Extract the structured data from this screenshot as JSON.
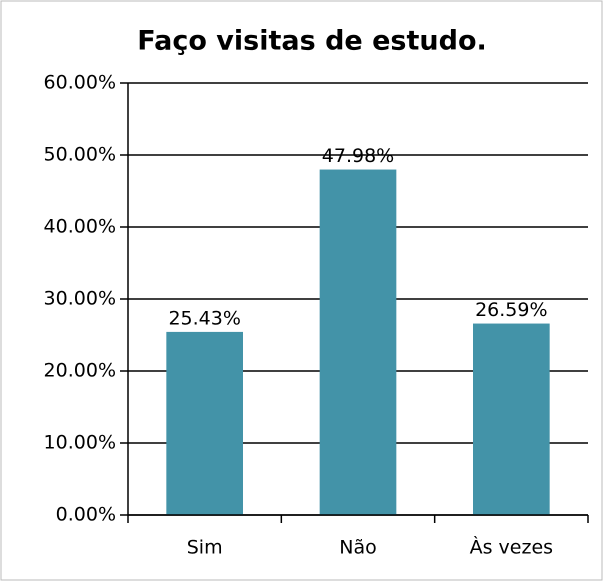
{
  "chart_data": {
    "type": "bar",
    "title": "Faço visitas de estudo.",
    "categories": [
      "Sim",
      "Não",
      "Às vezes"
    ],
    "values": [
      25.43,
      47.98,
      26.59
    ],
    "value_labels": [
      "25.43%",
      "47.98%",
      "26.59%"
    ],
    "color": "#4393a8",
    "ylim": [
      0,
      60
    ],
    "yticks": [
      {
        "value": 0,
        "label": "0.00%"
      },
      {
        "value": 10,
        "label": "10.00%"
      },
      {
        "value": 20,
        "label": "20.00%"
      },
      {
        "value": 30,
        "label": "30.00%"
      },
      {
        "value": 40,
        "label": "40.00%"
      },
      {
        "value": 50,
        "label": "50.00%"
      },
      {
        "value": 60,
        "label": "60.00%"
      }
    ],
    "grid": true
  }
}
